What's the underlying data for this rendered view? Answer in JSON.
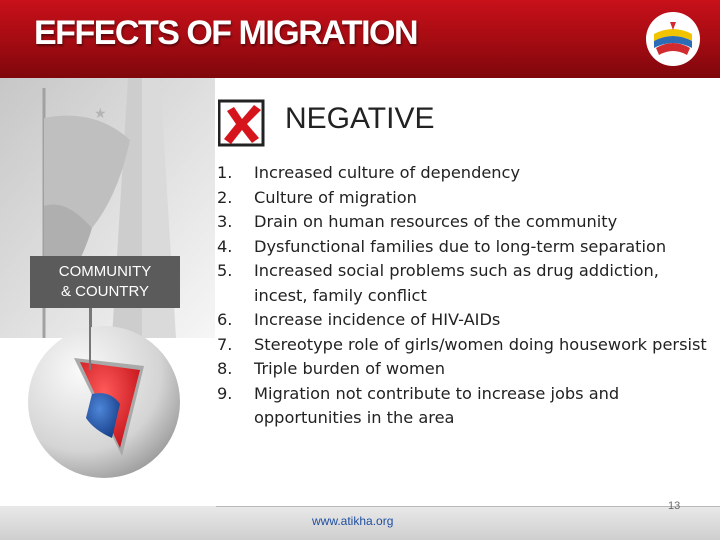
{
  "header": {
    "title": "EFFECTS OF MIGRATION"
  },
  "colors": {
    "header_red": "#b70d15",
    "accent_red": "#e31b23",
    "label_gray": "#5b5b5b",
    "link_blue": "#1f4fa0"
  },
  "section": {
    "icon": "x-mark-box-icon",
    "heading": "NEGATIVE"
  },
  "side_label": {
    "line1": "COMMUNITY",
    "line2": "& COUNTRY"
  },
  "items": [
    {
      "num": "1.",
      "text": "Increased culture of dependency"
    },
    {
      "num": "2.",
      "text": "Culture of migration"
    },
    {
      "num": "3.",
      "text": "Drain on human resources of the community"
    },
    {
      "num": "4.",
      "text": "Dysfunctional families due to long-term separation"
    },
    {
      "num": "5.",
      "text": "Increased social problems such as drug addiction, incest, family conflict"
    },
    {
      "num": "6.",
      "text": "Increase incidence of HIV-AIDs"
    },
    {
      "num": "7.",
      "text": "Stereotype role of girls/women doing housework persist"
    },
    {
      "num": "8.",
      "text": "Triple burden of women"
    },
    {
      "num": "9.",
      "text": "Migration not contribute to increase jobs and opportunities in the area"
    }
  ],
  "footer": {
    "url": "www.atikha.org",
    "page": "13"
  }
}
